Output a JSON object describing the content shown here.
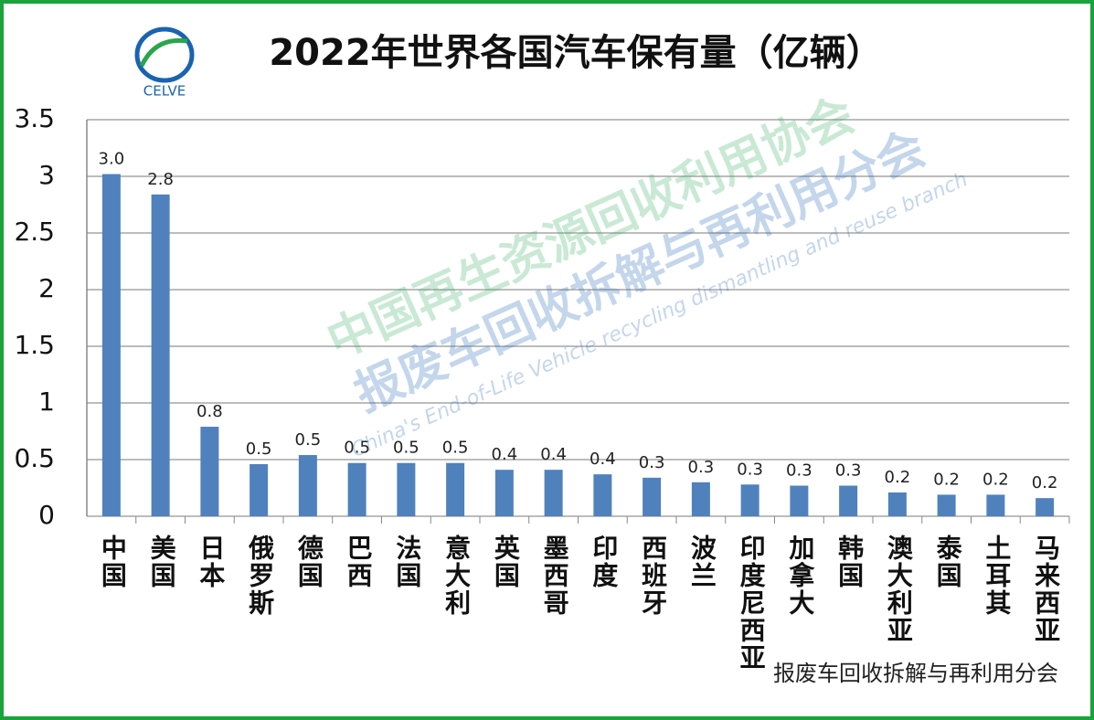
{
  "chart_data": {
    "type": "bar",
    "title": "2022年世界各国汽车保有量（亿辆）",
    "categories": [
      "中国",
      "美国",
      "日本",
      "俄罗斯",
      "德国",
      "巴西",
      "法国",
      "意大利",
      "英国",
      "墨西哥",
      "印度",
      "西班牙",
      "波兰",
      "印度尼西亚",
      "加拿大",
      "韩国",
      "澳大利亚",
      "泰国",
      "土耳其",
      "马来西亚"
    ],
    "values": [
      3.02,
      2.84,
      0.79,
      0.46,
      0.54,
      0.47,
      0.47,
      0.47,
      0.41,
      0.41,
      0.37,
      0.34,
      0.3,
      0.28,
      0.27,
      0.27,
      0.21,
      0.19,
      0.19,
      0.16
    ],
    "value_labels": [
      "3.0",
      "2.8",
      "0.8",
      "0.5",
      "0.5",
      "0.5",
      "0.5",
      "0.5",
      "0.4",
      "0.4",
      "0.4",
      "0.3",
      "0.3",
      "0.3",
      "0.3",
      "0.3",
      "0.2",
      "0.2",
      "0.2",
      "0.2"
    ],
    "color": "#4f81bd",
    "ylim": [
      0,
      3.5
    ],
    "yticks": [
      0,
      0.5,
      1,
      1.5,
      2,
      2.5,
      3,
      3.5
    ],
    "grid": true
  },
  "logo": "CELVE",
  "watermark": {
    "line1": "中国再生资源回收利用协会",
    "line2": "报废车回收拆解与再利用分会",
    "line3": "China's End-of-Life Vehicle recycling dismantling and reuse branch"
  },
  "footer": "报废车回收拆解与再利用分会"
}
